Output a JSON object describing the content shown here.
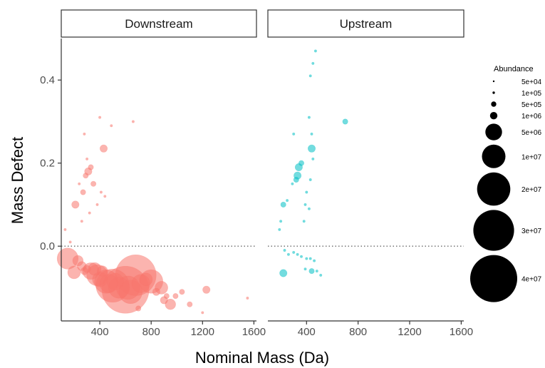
{
  "chart_data": {
    "type": "scatter",
    "xlabel": "Nominal Mass (Da)",
    "ylabel": "Mass Defect",
    "xlim": [
      100,
      1620
    ],
    "ylim": [
      -0.18,
      0.5
    ],
    "x_ticks": [
      400,
      800,
      1200,
      1600
    ],
    "x_tick_labels": [
      "400",
      "800",
      "1200",
      "1600"
    ],
    "y_ticks": [
      0.4,
      0.2,
      0.0
    ],
    "y_tick_labels": [
      "0.4",
      "0.2",
      "0.0"
    ],
    "reference_line": {
      "y": 0,
      "style": "dotted"
    },
    "grid": false,
    "legend": {
      "title": "Abundance",
      "placement": "right",
      "entries": [
        {
          "label": "5e+04",
          "value": 50000
        },
        {
          "label": "1e+05",
          "value": 100000
        },
        {
          "label": "5e+05",
          "value": 500000
        },
        {
          "label": "1e+06",
          "value": 1000000
        },
        {
          "label": "5e+06",
          "value": 5000000
        },
        {
          "label": "1e+07",
          "value": 10000000
        },
        {
          "label": "2e+07",
          "value": 20000000
        },
        {
          "label": "3e+07",
          "value": 30000000
        },
        {
          "label": "4e+07",
          "value": 40000000
        }
      ]
    },
    "facets": [
      {
        "label": "Downstream",
        "color": "#F8766D",
        "points": [
          [
            150,
            -0.03,
            8000000
          ],
          [
            200,
            -0.063,
            3000000
          ],
          [
            230,
            -0.035,
            2000000
          ],
          [
            260,
            -0.048,
            1500000
          ],
          [
            280,
            -0.06,
            1000000
          ],
          [
            300,
            -0.055,
            1000000
          ],
          [
            330,
            -0.06,
            5000000
          ],
          [
            360,
            -0.055,
            3000000
          ],
          [
            380,
            -0.07,
            8000000
          ],
          [
            400,
            -0.08,
            4000000
          ],
          [
            420,
            -0.06,
            2000000
          ],
          [
            450,
            -0.085,
            10000000
          ],
          [
            470,
            -0.09,
            6000000
          ],
          [
            500,
            -0.095,
            20000000
          ],
          [
            520,
            -0.085,
            5000000
          ],
          [
            550,
            -0.1,
            8000000
          ],
          [
            600,
            -0.105,
            40000000
          ],
          [
            620,
            -0.1,
            10000000
          ],
          [
            640,
            -0.11,
            10000000
          ],
          [
            680,
            -0.07,
            30000000
          ],
          [
            720,
            -0.09,
            6000000
          ],
          [
            760,
            -0.08,
            3000000
          ],
          [
            800,
            -0.085,
            10000000
          ],
          [
            840,
            -0.11,
            1000000
          ],
          [
            880,
            -0.1,
            3000000
          ],
          [
            900,
            -0.13,
            1000000
          ],
          [
            920,
            -0.12,
            500000
          ],
          [
            950,
            -0.14,
            2000000
          ],
          [
            990,
            -0.12,
            500000
          ],
          [
            1040,
            -0.11,
            500000
          ],
          [
            1100,
            -0.14,
            500000
          ],
          [
            1200,
            -0.16,
            100000
          ],
          [
            1230,
            -0.105,
            1000000
          ],
          [
            1550,
            -0.125,
            100000
          ],
          [
            700,
            -0.15,
            500000
          ],
          [
            130,
            0.04,
            100000
          ],
          [
            170,
            0.01,
            100000
          ],
          [
            210,
            0.1,
            1000000
          ],
          [
            240,
            0.15,
            100000
          ],
          [
            270,
            0.13,
            500000
          ],
          [
            290,
            0.17,
            500000
          ],
          [
            310,
            0.18,
            1000000
          ],
          [
            330,
            0.19,
            500000
          ],
          [
            300,
            0.21,
            100000
          ],
          [
            350,
            0.15,
            500000
          ],
          [
            380,
            0.1,
            100000
          ],
          [
            410,
            0.13,
            100000
          ],
          [
            430,
            0.235,
            1000000
          ],
          [
            440,
            0.12,
            100000
          ],
          [
            280,
            0.27,
            100000
          ],
          [
            400,
            0.31,
            100000
          ],
          [
            490,
            0.29,
            100000
          ],
          [
            660,
            0.3,
            100000
          ],
          [
            320,
            0.08,
            100000
          ],
          [
            260,
            0.06,
            100000
          ]
        ]
      },
      {
        "label": "Upstream",
        "color": "#00BFC4",
        "points": [
          [
            190,
            0.04,
            100000
          ],
          [
            200,
            0.06,
            100000
          ],
          [
            220,
            0.1,
            500000
          ],
          [
            250,
            0.11,
            100000
          ],
          [
            290,
            0.15,
            100000
          ],
          [
            320,
            0.16,
            500000
          ],
          [
            330,
            0.17,
            1000000
          ],
          [
            340,
            0.19,
            1000000
          ],
          [
            360,
            0.2,
            500000
          ],
          [
            390,
            0.1,
            100000
          ],
          [
            400,
            0.13,
            100000
          ],
          [
            430,
            0.16,
            100000
          ],
          [
            420,
            0.09,
            100000
          ],
          [
            440,
            0.235,
            1000000
          ],
          [
            450,
            0.21,
            100000
          ],
          [
            300,
            0.27,
            100000
          ],
          [
            420,
            0.31,
            100000
          ],
          [
            440,
            0.27,
            100000
          ],
          [
            430,
            0.41,
            100000
          ],
          [
            450,
            0.44,
            100000
          ],
          [
            470,
            0.47,
            100000
          ],
          [
            700,
            0.3,
            500000
          ],
          [
            380,
            0.06,
            100000
          ],
          [
            230,
            -0.01,
            100000
          ],
          [
            260,
            -0.02,
            100000
          ],
          [
            300,
            -0.015,
            100000
          ],
          [
            330,
            -0.02,
            100000
          ],
          [
            360,
            -0.025,
            100000
          ],
          [
            400,
            -0.03,
            100000
          ],
          [
            430,
            -0.03,
            100000
          ],
          [
            460,
            -0.035,
            100000
          ],
          [
            220,
            -0.065,
            1000000
          ],
          [
            390,
            -0.055,
            100000
          ],
          [
            440,
            -0.06,
            500000
          ],
          [
            480,
            -0.06,
            100000
          ],
          [
            510,
            -0.07,
            100000
          ]
        ]
      }
    ]
  }
}
